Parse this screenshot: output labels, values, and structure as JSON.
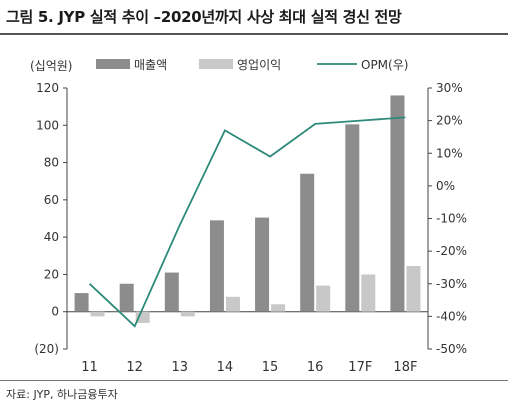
{
  "title": "그림 5. JYP 실적 추이 –2020년까지 사상 최대 실적 경신 전망",
  "source": "자료: JYP, 하나금융투자",
  "chart_data": {
    "type": "bar",
    "categories": [
      "11",
      "12",
      "13",
      "14",
      "15",
      "16",
      "17F",
      "18F"
    ],
    "series": [
      {
        "name": "매출액",
        "axis": "left",
        "kind": "bar",
        "color": "#8c8c8c",
        "values": [
          10,
          15,
          21,
          49,
          50.5,
          74,
          100.5,
          116
        ]
      },
      {
        "name": "영업이익",
        "axis": "left",
        "kind": "bar",
        "color": "#c8c8c8",
        "values": [
          -2.5,
          -6,
          -2.5,
          8,
          4,
          14,
          20,
          24.5
        ]
      },
      {
        "name": "OPM(우)",
        "axis": "right",
        "kind": "line",
        "color": "#2e8a7a",
        "values": [
          -30,
          -43,
          -12,
          17,
          9,
          19,
          20,
          21
        ]
      }
    ],
    "left_unit": "(십억원)",
    "left_ylim": [
      -20,
      120
    ],
    "left_ticks": [
      "120",
      "100",
      "80",
      "60",
      "40",
      "20",
      "0",
      "(20)"
    ],
    "right_ylim": [
      -50,
      30
    ],
    "right_ticks": [
      "30%",
      "20%",
      "10%",
      "0%",
      "-10%",
      "-20%",
      "-30%",
      "-40%",
      "-50%"
    ]
  }
}
